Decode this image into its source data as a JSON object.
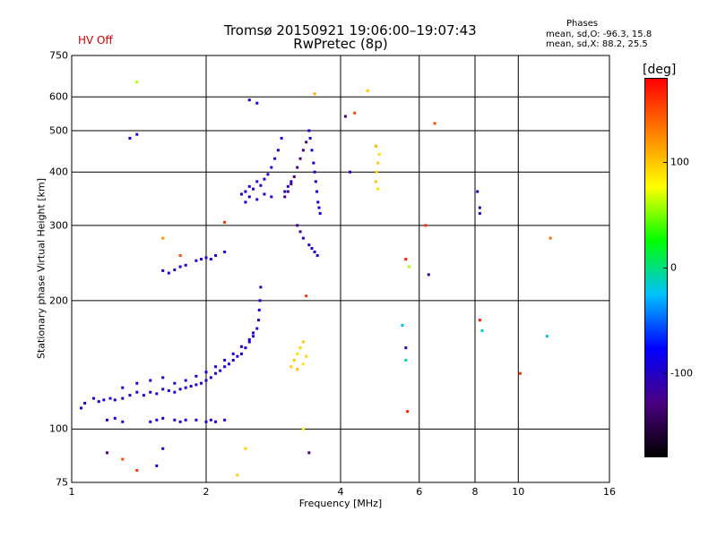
{
  "header": {
    "title_line1": "Tromsø 20150921 19:06:00–19:07:43",
    "title_line2": "RwPretec (8p)",
    "status": "HV Off",
    "status_color": "#cc0000"
  },
  "phases": {
    "title": "Phases",
    "o_line": "mean, sd,O: -96.3, 15.8",
    "x_line": "mean, sd,X:  88.2, 25.5"
  },
  "colorbar": {
    "unit": "[deg]",
    "range": [
      -180,
      180
    ],
    "ticks": [
      "100",
      "0",
      "-100"
    ],
    "tick_values": [
      100,
      0,
      -100
    ],
    "stops": [
      "#000000",
      "#4b0082",
      "#0000ff",
      "#00c0ff",
      "#00ff00",
      "#ffff00",
      "#ff8000",
      "#ff0000"
    ]
  },
  "chart_data": {
    "type": "scatter",
    "title": "Tromsø 20150921 19:06:00–19:07:43",
    "subtitle": "RwPretec (8p)",
    "xlabel": "Frequency [MHz]",
    "ylabel": "Stationary phase Virtual Height [km]",
    "x_scale": "log",
    "y_scale": "log",
    "xlim": [
      1,
      16
    ],
    "ylim": [
      75,
      750
    ],
    "x_ticks": [
      1,
      2,
      4,
      6,
      8,
      10,
      16
    ],
    "x_tick_labels": [
      "1",
      "2",
      "4",
      "6",
      "8",
      "10",
      "16"
    ],
    "y_ticks": [
      75,
      100,
      200,
      300,
      400,
      500,
      600,
      750
    ],
    "y_tick_labels": [
      "75",
      "100",
      "200",
      "300",
      "400",
      "500",
      "600",
      "750"
    ],
    "grid": true,
    "color_by": "phase [deg]",
    "points": [
      [
        1.05,
        112,
        -90
      ],
      [
        1.07,
        115,
        -95
      ],
      [
        1.12,
        118,
        -92
      ],
      [
        1.15,
        116,
        -96
      ],
      [
        1.18,
        117,
        -94
      ],
      [
        1.22,
        118,
        -97
      ],
      [
        1.25,
        117,
        -93
      ],
      [
        1.3,
        118,
        -95
      ],
      [
        1.35,
        120,
        -96
      ],
      [
        1.4,
        122,
        -94
      ],
      [
        1.45,
        120,
        -98
      ],
      [
        1.5,
        122,
        -95
      ],
      [
        1.55,
        121,
        -96
      ],
      [
        1.6,
        124,
        -97
      ],
      [
        1.65,
        123,
        -94
      ],
      [
        1.7,
        122,
        -95
      ],
      [
        1.75,
        124,
        -96
      ],
      [
        1.8,
        125,
        -93
      ],
      [
        1.85,
        126,
        -95
      ],
      [
        1.9,
        127,
        -97
      ],
      [
        1.95,
        128,
        -94
      ],
      [
        2.0,
        130,
        -96
      ],
      [
        2.05,
        132,
        -95
      ],
      [
        2.1,
        135,
        -98
      ],
      [
        2.15,
        137,
        -94
      ],
      [
        2.2,
        140,
        -96
      ],
      [
        2.25,
        142,
        -95
      ],
      [
        2.3,
        145,
        -97
      ],
      [
        2.35,
        148,
        -94
      ],
      [
        2.4,
        150,
        -96
      ],
      [
        2.45,
        155,
        -95
      ],
      [
        2.5,
        160,
        -98
      ],
      [
        2.55,
        165,
        -94
      ],
      [
        2.6,
        172,
        -96
      ],
      [
        2.62,
        180,
        -95
      ],
      [
        2.63,
        190,
        -92
      ],
      [
        2.64,
        200,
        -94
      ],
      [
        2.65,
        215,
        -96
      ],
      [
        1.3,
        125,
        -93
      ],
      [
        1.4,
        128,
        -95
      ],
      [
        1.5,
        130,
        -94
      ],
      [
        1.6,
        132,
        -97
      ],
      [
        1.7,
        128,
        -96
      ],
      [
        1.8,
        130,
        -95
      ],
      [
        1.9,
        133,
        -94
      ],
      [
        2.0,
        136,
        -96
      ],
      [
        2.1,
        140,
        -97
      ],
      [
        2.2,
        145,
        -95
      ],
      [
        2.3,
        150,
        -96
      ],
      [
        2.4,
        156,
        -94
      ],
      [
        2.5,
        162,
        -95
      ],
      [
        2.55,
        168,
        -97
      ],
      [
        1.2,
        105,
        -96
      ],
      [
        1.25,
        106,
        -94
      ],
      [
        1.3,
        104,
        -95
      ],
      [
        1.5,
        104,
        -97
      ],
      [
        1.55,
        105,
        -96
      ],
      [
        1.6,
        106,
        -94
      ],
      [
        1.7,
        105,
        -95
      ],
      [
        1.75,
        104,
        -96
      ],
      [
        1.8,
        105,
        -94
      ],
      [
        1.9,
        105,
        -97
      ],
      [
        2.0,
        104,
        -95
      ],
      [
        2.05,
        105,
        -96
      ],
      [
        2.1,
        104,
        -94
      ],
      [
        2.2,
        105,
        -95
      ],
      [
        1.6,
        235,
        -96
      ],
      [
        1.65,
        232,
        -95
      ],
      [
        1.7,
        236,
        -94
      ],
      [
        1.75,
        240,
        -97
      ],
      [
        1.8,
        242,
        -95
      ],
      [
        1.9,
        248,
        -96
      ],
      [
        1.95,
        250,
        -94
      ],
      [
        2.0,
        252,
        -95
      ],
      [
        2.05,
        250,
        -96
      ],
      [
        2.1,
        255,
        -94
      ],
      [
        2.2,
        260,
        -95
      ],
      [
        2.4,
        355,
        -96
      ],
      [
        2.45,
        360,
        -95
      ],
      [
        2.5,
        370,
        -94
      ],
      [
        2.55,
        365,
        -97
      ],
      [
        2.6,
        380,
        -95
      ],
      [
        2.65,
        372,
        -96
      ],
      [
        2.7,
        385,
        -94
      ],
      [
        2.75,
        395,
        -92
      ],
      [
        2.8,
        410,
        -95
      ],
      [
        2.85,
        430,
        -96
      ],
      [
        2.9,
        450,
        -94
      ],
      [
        2.95,
        480,
        -95
      ],
      [
        3.0,
        360,
        -97
      ],
      [
        3.05,
        370,
        -96
      ],
      [
        3.1,
        380,
        -94
      ],
      [
        2.45,
        340,
        -95
      ],
      [
        2.5,
        350,
        -96
      ],
      [
        2.6,
        345,
        -94
      ],
      [
        2.7,
        355,
        -95
      ],
      [
        2.8,
        350,
        -96
      ],
      [
        3.0,
        350,
        -130
      ],
      [
        3.05,
        360,
        -135
      ],
      [
        3.1,
        375,
        -130
      ],
      [
        3.15,
        390,
        -125
      ],
      [
        3.2,
        410,
        -130
      ],
      [
        3.25,
        430,
        -128
      ],
      [
        3.3,
        450,
        -132
      ],
      [
        3.35,
        470,
        -130
      ],
      [
        3.4,
        500,
        -95
      ],
      [
        3.42,
        480,
        -96
      ],
      [
        3.45,
        450,
        -94
      ],
      [
        3.48,
        420,
        -95
      ],
      [
        3.5,
        400,
        -96
      ],
      [
        3.52,
        380,
        -95
      ],
      [
        3.54,
        360,
        -94
      ],
      [
        3.56,
        340,
        -96
      ],
      [
        3.58,
        330,
        -95
      ],
      [
        3.6,
        320,
        -94
      ],
      [
        3.3,
        280,
        -95
      ],
      [
        3.4,
        270,
        -96
      ],
      [
        3.45,
        265,
        -94
      ],
      [
        3.5,
        260,
        -95
      ],
      [
        3.55,
        255,
        -96
      ],
      [
        3.2,
        300,
        -120
      ],
      [
        3.25,
        290,
        -125
      ],
      [
        3.1,
        140,
        95
      ],
      [
        3.15,
        145,
        100
      ],
      [
        3.2,
        150,
        90
      ],
      [
        3.25,
        155,
        95
      ],
      [
        3.3,
        160,
        98
      ],
      [
        3.35,
        148,
        92
      ],
      [
        3.2,
        138,
        105
      ],
      [
        3.3,
        142,
        88
      ],
      [
        4.8,
        380,
        100
      ],
      [
        4.82,
        400,
        95
      ],
      [
        4.85,
        420,
        98
      ],
      [
        4.88,
        440,
        92
      ],
      [
        4.8,
        460,
        105
      ],
      [
        4.85,
        365,
        90
      ],
      [
        4.1,
        540,
        -140
      ],
      [
        4.3,
        550,
        150
      ],
      [
        4.2,
        400,
        -100
      ],
      [
        5.6,
        250,
        170
      ],
      [
        5.7,
        240,
        60
      ],
      [
        6.2,
        300,
        160
      ],
      [
        6.3,
        230,
        -120
      ],
      [
        6.5,
        520,
        150
      ],
      [
        5.5,
        175,
        -20
      ],
      [
        5.6,
        155,
        -110
      ],
      [
        5.6,
        145,
        -10
      ],
      [
        5.65,
        110,
        170
      ],
      [
        8.2,
        180,
        170
      ],
      [
        8.3,
        170,
        -15
      ],
      [
        8.1,
        360,
        -110
      ],
      [
        8.2,
        320,
        -105
      ],
      [
        8.2,
        330,
        -115
      ],
      [
        10.1,
        135,
        160
      ],
      [
        11.6,
        165,
        -20
      ],
      [
        11.8,
        280,
        140
      ],
      [
        1.2,
        88,
        -120
      ],
      [
        1.3,
        85,
        150
      ],
      [
        1.4,
        80,
        160
      ],
      [
        1.55,
        82,
        -95
      ],
      [
        1.6,
        90,
        -100
      ],
      [
        2.35,
        78,
        100
      ],
      [
        2.45,
        90,
        95
      ],
      [
        3.4,
        88,
        -130
      ],
      [
        3.35,
        205,
        160
      ],
      [
        3.3,
        100,
        80
      ],
      [
        1.4,
        650,
        60
      ],
      [
        1.35,
        480,
        -95
      ],
      [
        1.4,
        490,
        -96
      ],
      [
        1.6,
        280,
        120
      ],
      [
        1.75,
        255,
        150
      ],
      [
        2.5,
        590,
        -96
      ],
      [
        2.6,
        580,
        -98
      ],
      [
        2.2,
        305,
        160
      ],
      [
        4.6,
        620,
        100
      ],
      [
        3.5,
        610,
        110
      ]
    ]
  }
}
